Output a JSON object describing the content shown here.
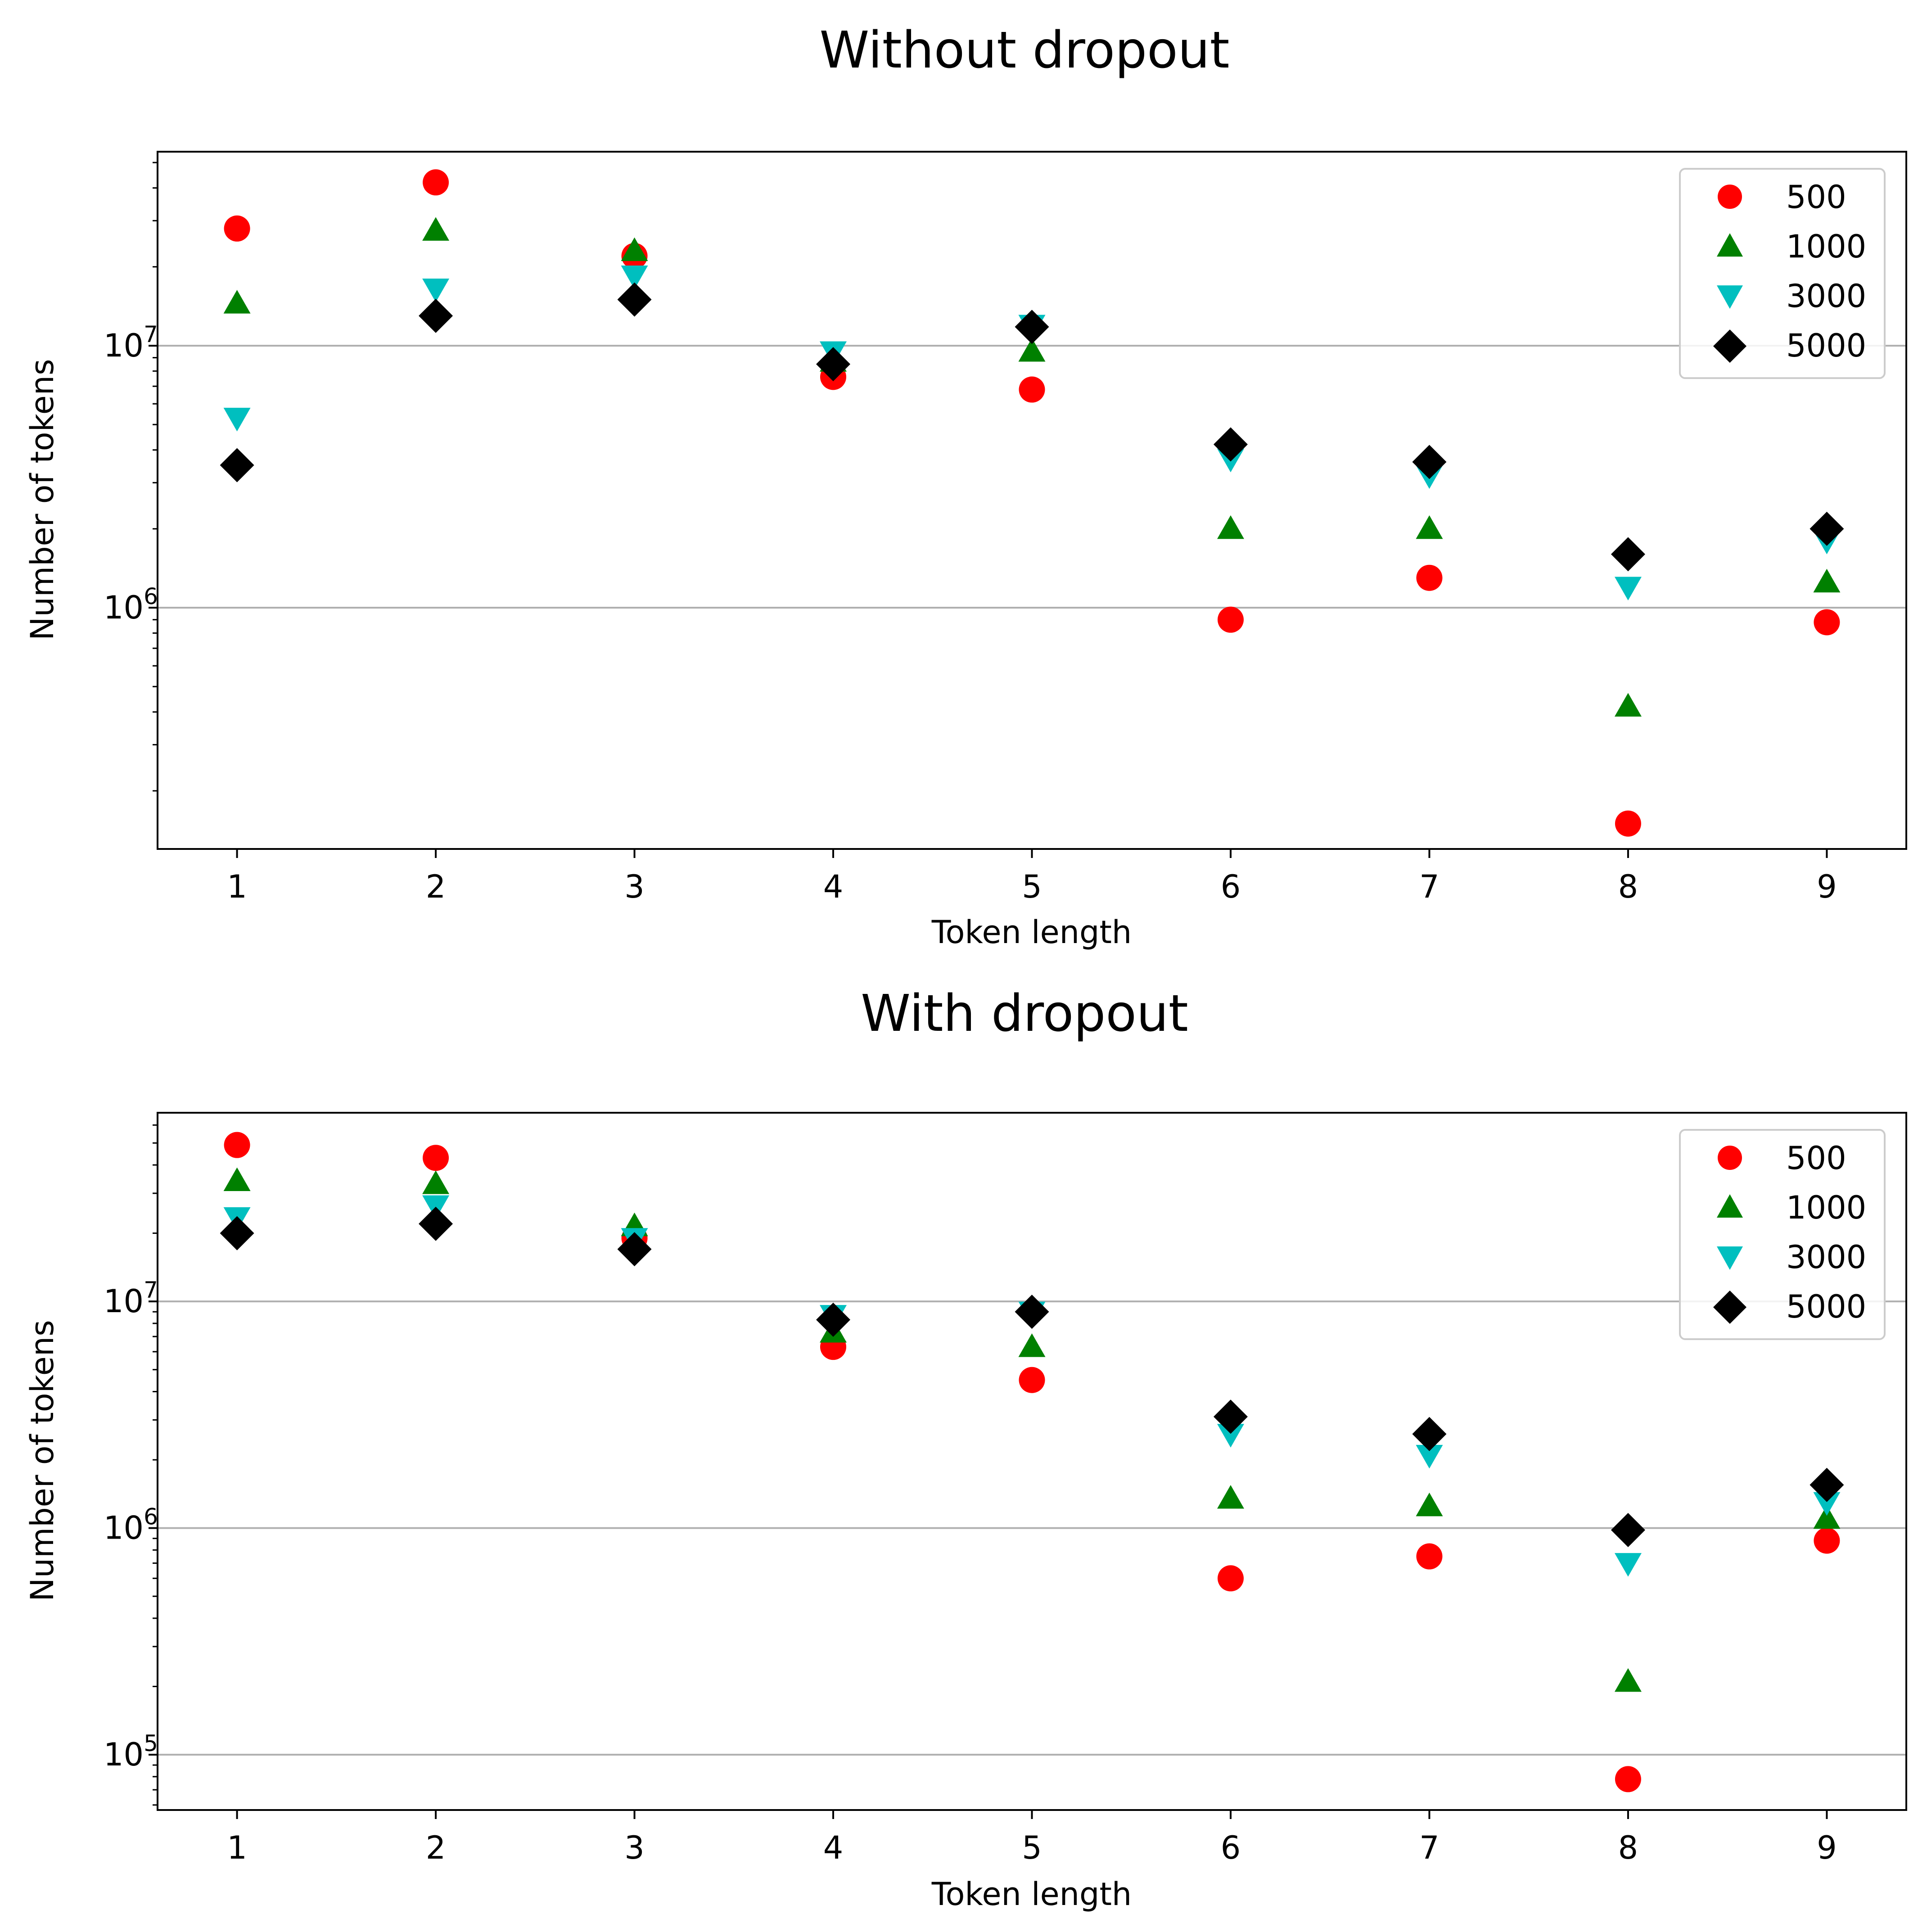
{
  "figure": {
    "background": "#ffffff"
  },
  "legend_series": [
    "500",
    "1000",
    "3000",
    "5000"
  ],
  "series_styles": [
    {
      "name": "500",
      "marker": "circle",
      "color": "#ff0000"
    },
    {
      "name": "1000",
      "marker": "triangle-up",
      "color": "#008000"
    },
    {
      "name": "3000",
      "marker": "triangle-down",
      "color": "#00bfbf"
    },
    {
      "name": "5000",
      "marker": "diamond",
      "color": "#000000"
    }
  ],
  "chart_data": [
    {
      "type": "scatter",
      "title": "Without dropout",
      "xlabel": "Token length",
      "ylabel": "Number of tokens",
      "yscale": "log",
      "xlim": [
        0.6,
        9.4
      ],
      "ylim": [
        120000,
        55000000
      ],
      "grid": "y-major",
      "legend": "top-right",
      "x": [
        1,
        2,
        3,
        4,
        5,
        6,
        7,
        8,
        9
      ],
      "x_ticks": [
        "1",
        "2",
        "3",
        "4",
        "5",
        "6",
        "7",
        "8",
        "9"
      ],
      "y_ticks": [
        {
          "base": "10",
          "exp": "6",
          "value": 1000000
        },
        {
          "base": "10",
          "exp": "7",
          "value": 10000000
        }
      ],
      "series": [
        {
          "name": "500",
          "values": [
            28000000,
            42000000,
            22000000,
            7600000,
            6800000,
            900000,
            1300000,
            150000,
            880000
          ]
        },
        {
          "name": "1000",
          "values": [
            14500000,
            27500000,
            23000000,
            8700000,
            9500000,
            2000000,
            2000000,
            420000,
            1250000
          ]
        },
        {
          "name": "3000",
          "values": [
            5300000,
            16500000,
            18500000,
            9500000,
            12000000,
            3700000,
            3200000,
            1200000,
            1800000
          ]
        },
        {
          "name": "5000",
          "values": [
            3500000,
            13000000,
            15000000,
            8500000,
            11800000,
            4200000,
            3600000,
            1600000,
            2000000
          ]
        }
      ]
    },
    {
      "type": "scatter",
      "title": "With dropout",
      "xlabel": "Token length",
      "ylabel": "Number of tokens",
      "yscale": "log",
      "xlim": [
        0.6,
        9.4
      ],
      "ylim": [
        57000,
        68000000
      ],
      "grid": "y-major",
      "legend": "top-right",
      "x": [
        1,
        2,
        3,
        4,
        5,
        6,
        7,
        8,
        9
      ],
      "x_ticks": [
        "1",
        "2",
        "3",
        "4",
        "5",
        "6",
        "7",
        "8",
        "9"
      ],
      "y_ticks": [
        {
          "base": "10",
          "exp": "5",
          "value": 100000
        },
        {
          "base": "10",
          "exp": "6",
          "value": 1000000
        },
        {
          "base": "10",
          "exp": "7",
          "value": 10000000
        }
      ],
      "series": [
        {
          "name": "500",
          "values": [
            49000000,
            43000000,
            19000000,
            6300000,
            4500000,
            600000,
            750000,
            78000,
            880000
          ]
        },
        {
          "name": "1000",
          "values": [
            34000000,
            33000000,
            21500000,
            7300000,
            6300000,
            1350000,
            1250000,
            210000,
            1100000
          ]
        },
        {
          "name": "3000",
          "values": [
            23500000,
            26500000,
            19000000,
            8700000,
            9000000,
            2600000,
            2100000,
            700000,
            1300000
          ]
        },
        {
          "name": "5000",
          "values": [
            20000000,
            22000000,
            17000000,
            8300000,
            9000000,
            3100000,
            2600000,
            980000,
            1550000
          ]
        }
      ]
    }
  ]
}
